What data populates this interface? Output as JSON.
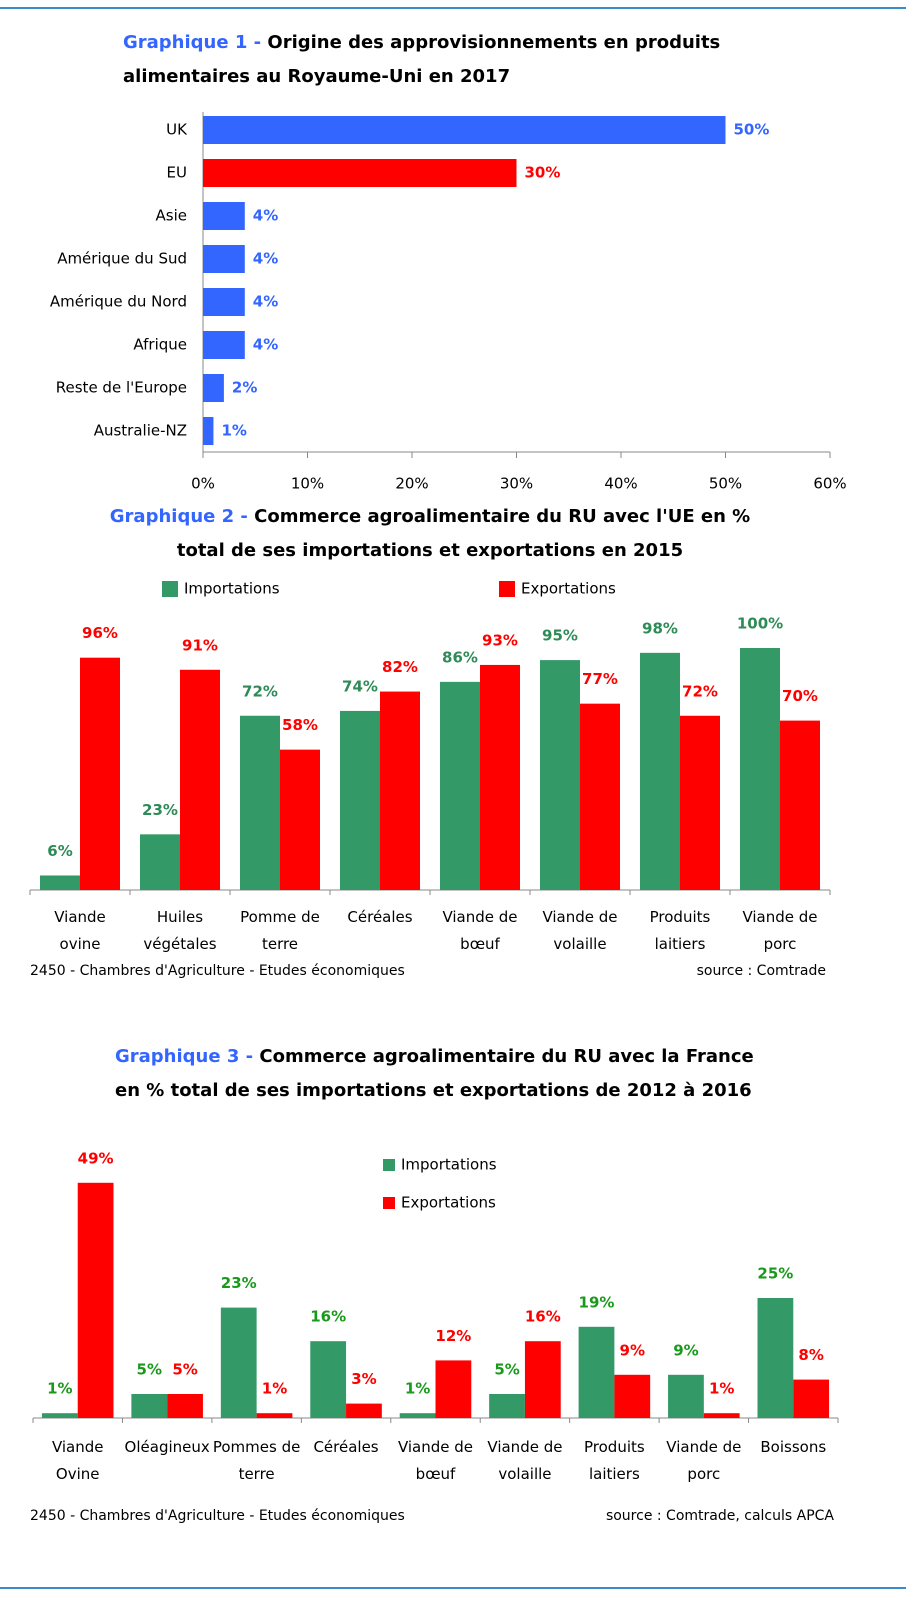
{
  "chart_data": [
    {
      "type": "bar",
      "horizontal": true,
      "label": "Graphique 1 -",
      "title": "Origine des approvisionnements en produits alimentaires au Royaume-Uni en 2017",
      "categories": [
        "UK",
        "EU",
        "Asie",
        "Amérique du Sud",
        "Amérique du Nord",
        "Afrique",
        "Reste de l'Europe",
        "Australie-NZ"
      ],
      "values": [
        50,
        30,
        4,
        4,
        4,
        4,
        2,
        1
      ],
      "value_labels": [
        "50%",
        "30%",
        "4%",
        "4%",
        "4%",
        "4%",
        "2%",
        "1%"
      ],
      "colors": [
        "#3366ff",
        "#ff0000",
        "#3366ff",
        "#3366ff",
        "#3366ff",
        "#3366ff",
        "#3366ff",
        "#3366ff"
      ],
      "xlim": [
        0,
        60
      ],
      "xticks": [
        {
          "value": 0,
          "label": "0%"
        },
        {
          "value": 10,
          "label": "10%"
        },
        {
          "value": 20,
          "label": "20%"
        },
        {
          "value": 30,
          "label": "30%"
        },
        {
          "value": 40,
          "label": "40%"
        },
        {
          "value": 50,
          "label": "50%"
        },
        {
          "value": 60,
          "label": "60%"
        }
      ]
    },
    {
      "type": "bar",
      "label": "Graphique 2 -",
      "title": "Commerce agroalimentaire du RU avec l'UE en % total de ses importations et exportations en 2015",
      "categories": [
        "Viande ovine",
        "Huiles végétales",
        "Pomme de terre",
        "Céréales",
        "Viande de bœuf",
        "Viande de volaille",
        "Produits laitiers",
        "Viande de porc"
      ],
      "series": [
        {
          "name": "Importations",
          "color": "#339966",
          "label_color": "#2e8b57",
          "values": [
            6,
            23,
            72,
            74,
            86,
            95,
            98,
            100
          ],
          "value_labels": [
            "6%",
            "23%",
            "72%",
            "74%",
            "86%",
            "95%",
            "98%",
            "100%"
          ]
        },
        {
          "name": "Exportations",
          "color": "#ff0000",
          "label_color": "#ff0000",
          "values": [
            96,
            91,
            58,
            82,
            93,
            77,
            72,
            70
          ],
          "value_labels": [
            "96%",
            "91%",
            "58%",
            "82%",
            "93%",
            "77%",
            "72%",
            "70%"
          ]
        }
      ],
      "ylim": [
        0,
        100
      ],
      "legend": "top",
      "footer": "2450 - Chambres d'Agriculture - Etudes économiques",
      "source": "source : Comtrade"
    },
    {
      "type": "bar",
      "label": "Graphique 3 -",
      "title": "Commerce agroalimentaire du RU avec la France en % total de ses importations et exportations de 2012 à 2016",
      "categories": [
        "Viande Ovine",
        "Oléagineux",
        "Pommes de terre",
        "Céréales",
        "Viande de bœuf",
        "Viande de volaille",
        "Produits laitiers",
        "Viande de porc",
        "Boissons"
      ],
      "series": [
        {
          "name": "Importations",
          "color": "#339966",
          "label_color": "#1a9a1a",
          "values": [
            1,
            5,
            23,
            16,
            1,
            5,
            19,
            9,
            25
          ],
          "value_labels": [
            "1%",
            "5%",
            "23%",
            "16%",
            "1%",
            "5%",
            "19%",
            "9%",
            "25%"
          ]
        },
        {
          "name": "Exportations",
          "color": "#ff0000",
          "label_color": "#ff0000",
          "values": [
            49,
            5,
            1,
            3,
            12,
            16,
            9,
            1,
            8
          ],
          "value_labels": [
            "49%",
            "5%",
            "1%",
            "3%",
            "12%",
            "16%",
            "9%",
            "1%",
            "8%"
          ]
        }
      ],
      "ylim": [
        0,
        50
      ],
      "legend": "center",
      "footer": "2450 - Chambres d'Agriculture - Etudes économiques",
      "source": "source : Comtrade, calculs APCA"
    }
  ]
}
